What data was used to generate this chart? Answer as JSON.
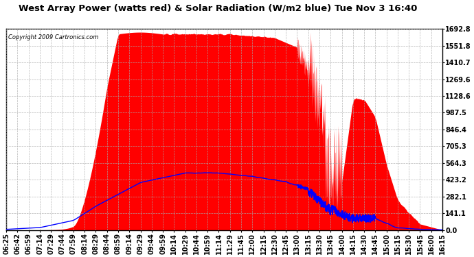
{
  "title": "West Array Power (watts red) & Solar Radiation (W/m2 blue) Tue Nov 3 16:40",
  "copyright": "Copyright 2009 Cartronics.com",
  "yticks": [
    0.0,
    141.1,
    282.1,
    423.2,
    564.3,
    705.3,
    846.4,
    987.5,
    1128.6,
    1269.6,
    1410.7,
    1551.8,
    1692.8
  ],
  "ymax": 1692.8,
  "ymin": 0.0,
  "bg_color": "#ffffff",
  "plot_bg_color": "#ffffff",
  "grid_color": "#aaaaaa",
  "red_color": "#ff0000",
  "blue_color": "#0000ff",
  "title_fontsize": 9.5,
  "tick_fontsize": 7.0,
  "time_labels": [
    "06:25",
    "06:42",
    "06:59",
    "07:14",
    "07:29",
    "07:44",
    "07:59",
    "08:14",
    "08:29",
    "08:44",
    "08:59",
    "09:14",
    "09:29",
    "09:44",
    "09:59",
    "10:14",
    "10:29",
    "10:44",
    "10:59",
    "11:14",
    "11:29",
    "11:45",
    "12:00",
    "12:15",
    "12:30",
    "12:45",
    "13:00",
    "13:15",
    "13:30",
    "13:45",
    "14:00",
    "14:15",
    "14:30",
    "14:45",
    "15:00",
    "15:15",
    "15:30",
    "15:45",
    "16:00",
    "16:15"
  ]
}
